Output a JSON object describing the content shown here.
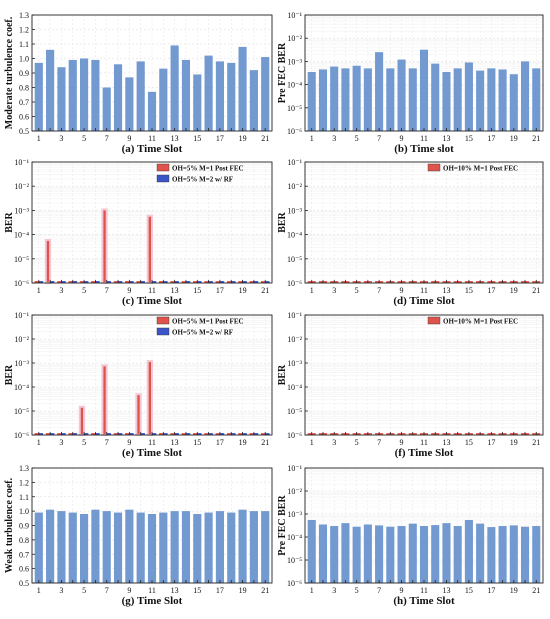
{
  "chart_data": [
    {
      "type": "bar",
      "panel": "a",
      "caption": "(a) Time Slot",
      "xlabel": "",
      "ylabel": "Moderate turbulence coef.",
      "scale": "linear",
      "ylim": [
        0.5,
        1.3
      ],
      "yticks": [
        "0.5",
        "0.6",
        "0.7",
        "0.8",
        "0.9",
        "1.0",
        "1.1",
        "1.2",
        "1.3"
      ],
      "x": [
        1,
        2,
        3,
        4,
        5,
        6,
        7,
        8,
        9,
        10,
        11,
        12,
        13,
        14,
        15,
        16,
        17,
        18,
        19,
        20,
        21
      ],
      "xticks": [
        "1",
        "3",
        "5",
        "7",
        "9",
        "11",
        "13",
        "15",
        "17",
        "19",
        "21"
      ],
      "series": [
        {
          "color": "#7399d1",
          "values": [
            0.97,
            1.06,
            0.94,
            0.99,
            1.0,
            0.99,
            0.8,
            0.96,
            0.87,
            0.98,
            0.77,
            0.93,
            1.09,
            0.99,
            0.89,
            1.02,
            0.98,
            0.97,
            1.08,
            0.92,
            1.01
          ]
        }
      ],
      "legend": []
    },
    {
      "type": "bar",
      "panel": "b",
      "caption": "(b) Time slot",
      "xlabel": "",
      "ylabel": "Pre FEC BER",
      "scale": "log",
      "ylim": [
        1e-06,
        0.1
      ],
      "yticks": [
        "10⁻⁶",
        "10⁻⁵",
        "10⁻⁴",
        "10⁻³",
        "10⁻²",
        "10⁻¹"
      ],
      "x": [
        1,
        2,
        3,
        4,
        5,
        6,
        7,
        8,
        9,
        10,
        11,
        12,
        13,
        14,
        15,
        16,
        17,
        18,
        19,
        20,
        21
      ],
      "xticks": [
        "1",
        "3",
        "5",
        "7",
        "9",
        "11",
        "13",
        "15",
        "17",
        "19",
        "21"
      ],
      "series": [
        {
          "color": "#7399d1",
          "values": [
            0.00035,
            0.00045,
            0.0006,
            0.0005,
            0.00065,
            0.0005,
            0.0025,
            0.0005,
            0.0012,
            0.0005,
            0.0032,
            0.0008,
            0.00035,
            0.0005,
            0.0009,
            0.0004,
            0.0005,
            0.00045,
            0.00028,
            0.001,
            0.0005
          ]
        }
      ],
      "legend": []
    },
    {
      "type": "bar",
      "panel": "c",
      "caption": "(c) Time Slot",
      "xlabel": "",
      "ylabel": "BER",
      "scale": "log",
      "ylim": [
        1e-06,
        0.1
      ],
      "yticks": [
        "10⁻⁶",
        "10⁻⁵",
        "10⁻⁴",
        "10⁻³",
        "10⁻²",
        "10⁻¹"
      ],
      "x": [
        1,
        2,
        3,
        4,
        5,
        6,
        7,
        8,
        9,
        10,
        11,
        12,
        13,
        14,
        15,
        16,
        17,
        18,
        19,
        20,
        21
      ],
      "xticks": [
        "1",
        "3",
        "5",
        "7",
        "9",
        "11",
        "13",
        "15",
        "17",
        "19",
        "21"
      ],
      "series": [
        {
          "name": "OH=5% M=1 Post FEC",
          "color": "#e0524c",
          "values": [
            1.2e-06,
            6e-05,
            1.2e-06,
            1.2e-06,
            1.2e-06,
            1.2e-06,
            0.0011,
            1.2e-06,
            1.2e-06,
            1.2e-06,
            0.0006,
            1.2e-06,
            1.2e-06,
            1.2e-06,
            1.2e-06,
            1.2e-06,
            1.2e-06,
            1.2e-06,
            1.2e-06,
            1.2e-06,
            1.2e-06
          ]
        },
        {
          "name": "OH=5% M=2 w/ RF",
          "color": "#3a55c8",
          "values": [
            1.2e-06,
            1.2e-06,
            1.2e-06,
            1.2e-06,
            1.2e-06,
            1.2e-06,
            1.2e-06,
            1.2e-06,
            1.2e-06,
            1.2e-06,
            1.2e-06,
            1.2e-06,
            1.2e-06,
            1.2e-06,
            1.2e-06,
            1.2e-06,
            1.2e-06,
            1.2e-06,
            1.2e-06,
            1.2e-06,
            1.2e-06
          ]
        }
      ],
      "legend": [
        "OH=5% M=1 Post FEC",
        "OH=5% M=2 w/ RF"
      ]
    },
    {
      "type": "bar",
      "panel": "d",
      "caption": "(d) Time Slot",
      "xlabel": "",
      "ylabel": "BER",
      "scale": "log",
      "ylim": [
        1e-06,
        0.1
      ],
      "yticks": [
        "10⁻⁶",
        "10⁻⁵",
        "10⁻⁴",
        "10⁻³",
        "10⁻²",
        "10⁻¹"
      ],
      "x": [
        1,
        2,
        3,
        4,
        5,
        6,
        7,
        8,
        9,
        10,
        11,
        12,
        13,
        14,
        15,
        16,
        17,
        18,
        19,
        20,
        21
      ],
      "xticks": [
        "1",
        "3",
        "5",
        "7",
        "9",
        "11",
        "13",
        "15",
        "17",
        "19",
        "21"
      ],
      "series": [
        {
          "name": "OH=10% M=1 Post FEC",
          "color": "#e0524c",
          "values": [
            1.2e-06,
            1.2e-06,
            1.2e-06,
            1.2e-06,
            1.2e-06,
            1.2e-06,
            1.2e-06,
            1.2e-06,
            1.2e-06,
            1.2e-06,
            1.2e-06,
            1.2e-06,
            1.2e-06,
            1.2e-06,
            1.2e-06,
            1.2e-06,
            1.2e-06,
            1.2e-06,
            1.2e-06,
            1.2e-06,
            1.2e-06
          ]
        }
      ],
      "legend": [
        "OH=10% M=1 Post FEC"
      ]
    },
    {
      "type": "bar",
      "panel": "e",
      "caption": "(e) Time Slot",
      "xlabel": "",
      "ylabel": "BER",
      "scale": "log",
      "ylim": [
        1e-06,
        0.1
      ],
      "yticks": [
        "10⁻⁶",
        "10⁻⁵",
        "10⁻⁴",
        "10⁻³",
        "10⁻²",
        "10⁻¹"
      ],
      "x": [
        1,
        2,
        3,
        4,
        5,
        6,
        7,
        8,
        9,
        10,
        11,
        12,
        13,
        14,
        15,
        16,
        17,
        18,
        19,
        20,
        21
      ],
      "xticks": [
        "1",
        "3",
        "5",
        "7",
        "9",
        "11",
        "13",
        "15",
        "17",
        "19",
        "21"
      ],
      "series": [
        {
          "name": "OH=5% M=1 Post FEC",
          "color": "#e0524c",
          "values": [
            1.2e-06,
            1.2e-06,
            1.2e-06,
            1.2e-06,
            1.5e-05,
            1.2e-06,
            0.0008,
            1.2e-06,
            1.2e-06,
            5e-05,
            0.0012,
            1.2e-06,
            1.2e-06,
            1.2e-06,
            1.2e-06,
            1.2e-06,
            1.2e-06,
            1.2e-06,
            1.2e-06,
            1.2e-06,
            1.2e-06
          ]
        },
        {
          "name": "OH=5% M=2 w/ RF",
          "color": "#3a55c8",
          "values": [
            1.2e-06,
            1.2e-06,
            1.2e-06,
            1.2e-06,
            1.2e-06,
            1.2e-06,
            1.2e-06,
            1.2e-06,
            1.2e-06,
            1.2e-06,
            1.2e-06,
            1.2e-06,
            1.2e-06,
            1.2e-06,
            1.2e-06,
            1.2e-06,
            1.2e-06,
            1.2e-06,
            1.2e-06,
            1.2e-06,
            1.2e-06
          ]
        }
      ],
      "legend": [
        "OH=5% M=1 Post FEC",
        "OH=5% M=2 w/ RF"
      ]
    },
    {
      "type": "bar",
      "panel": "f",
      "caption": "(f) Time Slot",
      "xlabel": "",
      "ylabel": "BER",
      "scale": "log",
      "ylim": [
        1e-06,
        0.1
      ],
      "yticks": [
        "10⁻⁶",
        "10⁻⁵",
        "10⁻⁴",
        "10⁻³",
        "10⁻²",
        "10⁻¹"
      ],
      "x": [
        1,
        2,
        3,
        4,
        5,
        6,
        7,
        8,
        9,
        10,
        11,
        12,
        13,
        14,
        15,
        16,
        17,
        18,
        19,
        20,
        21
      ],
      "xticks": [
        "1",
        "3",
        "5",
        "7",
        "9",
        "11",
        "13",
        "15",
        "17",
        "19",
        "21"
      ],
      "series": [
        {
          "name": "OH=10% M=1 Post FEC",
          "color": "#e0524c",
          "values": [
            1.2e-06,
            1.2e-06,
            1.2e-06,
            1.2e-06,
            1.2e-06,
            1.2e-06,
            1.2e-06,
            1.2e-06,
            1.2e-06,
            1.2e-06,
            1.2e-06,
            1.2e-06,
            1.2e-06,
            1.2e-06,
            1.2e-06,
            1.2e-06,
            1.2e-06,
            1.2e-06,
            1.2e-06,
            1.2e-06,
            1.2e-06
          ]
        }
      ],
      "legend": [
        "OH=10% M=1 Post FEC"
      ]
    },
    {
      "type": "bar",
      "panel": "g",
      "caption": "(g) Time Slot",
      "xlabel": "",
      "ylabel": "Weak turbulence coef.",
      "scale": "linear",
      "ylim": [
        0.5,
        1.3
      ],
      "yticks": [
        "0.5",
        "0.6",
        "0.7",
        "0.8",
        "0.9",
        "1.0",
        "1.1",
        "1.2",
        "1.3"
      ],
      "x": [
        1,
        2,
        3,
        4,
        5,
        6,
        7,
        8,
        9,
        10,
        11,
        12,
        13,
        14,
        15,
        16,
        17,
        18,
        19,
        20,
        21
      ],
      "xticks": [
        "1",
        "3",
        "5",
        "7",
        "9",
        "11",
        "13",
        "15",
        "17",
        "19",
        "21"
      ],
      "series": [
        {
          "color": "#7399d1",
          "values": [
            0.99,
            1.01,
            1.0,
            0.99,
            0.98,
            1.01,
            1.0,
            0.99,
            1.01,
            0.99,
            0.98,
            0.99,
            1.0,
            1.0,
            0.98,
            0.99,
            1.0,
            0.99,
            1.01,
            1.0,
            1.0
          ]
        }
      ],
      "legend": []
    },
    {
      "type": "bar",
      "panel": "h",
      "caption": "(h) Time Slot",
      "xlabel": "",
      "ylabel": "Pre FEC BER",
      "scale": "log",
      "ylim": [
        1e-06,
        0.1
      ],
      "yticks": [
        "10⁻⁶",
        "10⁻⁵",
        "10⁻⁴",
        "10⁻³",
        "10⁻²",
        "10⁻¹"
      ],
      "x": [
        1,
        2,
        3,
        4,
        5,
        6,
        7,
        8,
        9,
        10,
        11,
        12,
        13,
        14,
        15,
        16,
        17,
        18,
        19,
        20,
        21
      ],
      "xticks": [
        "1",
        "3",
        "5",
        "7",
        "9",
        "11",
        "13",
        "15",
        "17",
        "19",
        "21"
      ],
      "series": [
        {
          "color": "#7399d1",
          "values": [
            0.00055,
            0.00035,
            0.0003,
            0.0004,
            0.00028,
            0.00035,
            0.00032,
            0.00028,
            0.0003,
            0.00038,
            0.0003,
            0.00033,
            0.0004,
            0.0003,
            0.00055,
            0.00038,
            0.00027,
            0.0003,
            0.00032,
            0.00028,
            0.0003
          ]
        }
      ],
      "legend": []
    }
  ]
}
